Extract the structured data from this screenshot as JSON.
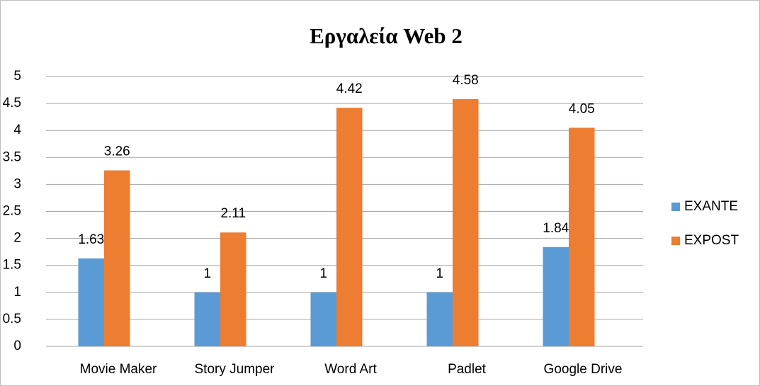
{
  "chart_data": {
    "type": "bar",
    "title": "Εργαλεία Web 2",
    "categories": [
      "Movie Maker",
      "Story Jumper",
      "Word Art",
      "Padlet",
      "Google Drive"
    ],
    "series": [
      {
        "name": "EXANTE",
        "color": "#5b9bd5",
        "values": [
          1.63,
          1,
          1,
          1,
          1.84
        ]
      },
      {
        "name": "EXPOST",
        "color": "#ed7d31",
        "values": [
          3.26,
          2.11,
          4.42,
          4.58,
          4.05
        ]
      }
    ],
    "ylim": [
      0,
      5
    ],
    "yticks": [
      0,
      0.5,
      1,
      1.5,
      2,
      2.5,
      3,
      3.5,
      4,
      4.5,
      5
    ],
    "grid": true,
    "legend": "right"
  }
}
